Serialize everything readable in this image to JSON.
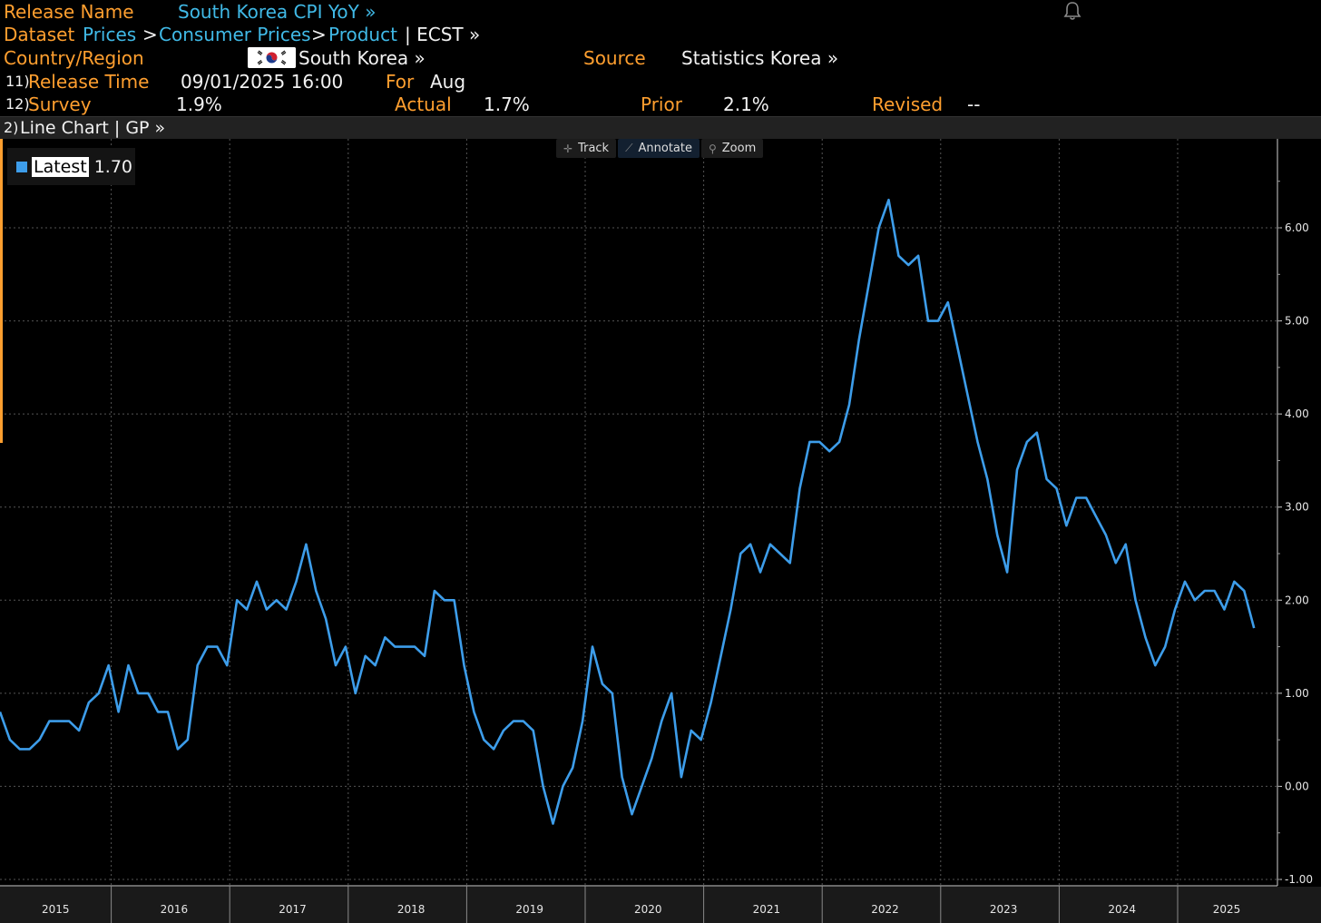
{
  "header": {
    "release_name_label": "Release Name",
    "release_name_value": "South Korea CPI YoY »",
    "dataset_label": "Dataset",
    "breadcrumb": [
      "Prices",
      ">",
      "Consumer Prices",
      ">",
      "Product"
    ],
    "breadcrumb_tail": "| ECST »",
    "country_label": "Country/Region",
    "country_value": "South Korea »",
    "flag_icon": "south-korea-flag-icon",
    "source_label": "Source",
    "source_value": "Statistics Korea »",
    "release_time_num": "11)",
    "release_time_label": "Release Time",
    "release_time_value": "09/01/2025 16:00",
    "for_label": "For",
    "for_value": "Aug",
    "survey_num": "12)",
    "survey_label": "Survey",
    "survey_value": "1.9%",
    "actual_label": "Actual",
    "actual_value": "1.7%",
    "prior_label": "Prior",
    "prior_value": "2.1%",
    "revised_label": "Revised",
    "revised_value": "--"
  },
  "chart_tab": {
    "num": "2)",
    "label": "Line Chart | GP »"
  },
  "toolbar": {
    "track": "Track",
    "annotate": "Annotate",
    "zoom": "Zoom"
  },
  "legend": {
    "label": "Latest",
    "value": "1.70",
    "color": "#3d9dea"
  },
  "colors": {
    "accent_orange": "#ff9f2f",
    "link_cyan": "#40b9e6",
    "line_blue": "#3d9dea",
    "background": "#000000"
  },
  "chart_data": {
    "type": "line",
    "title": "",
    "xlabel": "",
    "ylabel": "",
    "x_tick_labels": [
      "2015",
      "2016",
      "2017",
      "2018",
      "2019",
      "2020",
      "2021",
      "2022",
      "2023",
      "2024",
      "2025"
    ],
    "y_tick_labels": [
      "6.00",
      "5.00",
      "4.00",
      "3.00",
      "2.00",
      "1.00",
      "0.00",
      "-1.00"
    ],
    "ylim": [
      -1.0,
      6.8
    ],
    "grid": true,
    "x_start": "2015-01",
    "x_end": "2025-08",
    "series": [
      {
        "values": [
          0.8,
          0.5,
          0.4,
          0.4,
          0.5,
          0.7,
          0.7,
          0.7,
          0.6,
          0.9,
          1.0,
          1.3,
          0.8,
          1.3,
          1.0,
          1.0,
          0.8,
          0.8,
          0.4,
          0.5,
          1.3,
          1.5,
          1.5,
          1.3,
          2.0,
          1.9,
          2.2,
          1.9,
          2.0,
          1.9,
          2.2,
          2.6,
          2.1,
          1.8,
          1.3,
          1.5,
          1.0,
          1.4,
          1.3,
          1.6,
          1.5,
          1.5,
          1.5,
          1.4,
          2.1,
          2.0,
          2.0,
          1.3,
          0.8,
          0.5,
          0.4,
          0.6,
          0.7,
          0.7,
          0.6,
          0.0,
          -0.4,
          0.0,
          0.2,
          0.7,
          1.5,
          1.1,
          1.0,
          0.1,
          -0.3,
          0.0,
          0.3,
          0.7,
          1.0,
          0.1,
          0.6,
          0.5,
          0.9,
          1.4,
          1.9,
          2.5,
          2.6,
          2.3,
          2.6,
          2.5,
          2.4,
          3.2,
          3.7,
          3.7,
          3.6,
          3.7,
          4.1,
          4.8,
          5.4,
          6.0,
          6.3,
          5.7,
          5.6,
          5.7,
          5.0,
          5.0,
          5.2,
          4.7,
          4.2,
          3.7,
          3.3,
          2.7,
          2.3,
          3.4,
          3.7,
          3.8,
          3.3,
          3.2,
          2.8,
          3.1,
          3.1,
          2.9,
          2.7,
          2.4,
          2.6,
          2.0,
          1.6,
          1.3,
          1.5,
          1.9,
          2.2,
          2.0,
          2.1,
          2.1,
          1.9,
          2.2,
          2.1,
          1.7
        ]
      }
    ]
  }
}
